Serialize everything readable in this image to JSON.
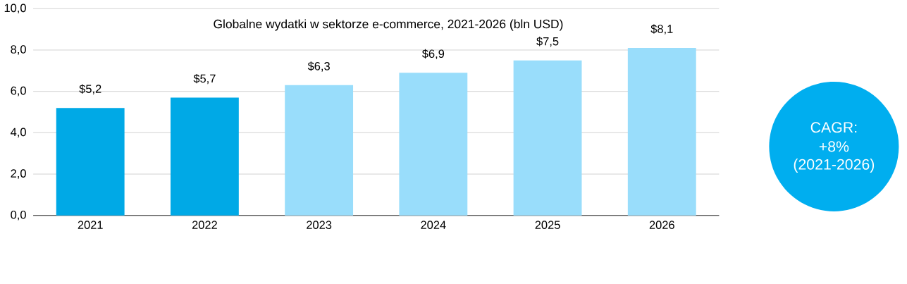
{
  "chart_data": {
    "type": "bar",
    "title": "Globalne wydatki w sektorze e-commerce, 2021-2026 (bln USD)",
    "categories": [
      "2021",
      "2022",
      "2023",
      "2024",
      "2025",
      "2026"
    ],
    "values": [
      5.2,
      5.7,
      6.3,
      6.9,
      7.5,
      8.1
    ],
    "colors": [
      "#00a9e6",
      "#00a9e6",
      "#99ddfb",
      "#99ddfb",
      "#99ddfb",
      "#99ddfb"
    ],
    "value_labels": [
      "$5,2",
      "$5,7",
      "$6,3",
      "$6,9",
      "$7,5",
      "$8,1"
    ],
    "ylim": [
      0,
      10
    ],
    "yticks": [
      {
        "value": 0,
        "label": "0,0"
      },
      {
        "value": 2,
        "label": "2,0"
      },
      {
        "value": 4,
        "label": "4,0"
      },
      {
        "value": 6,
        "label": "6,0"
      },
      {
        "value": 8,
        "label": "8,0"
      },
      {
        "value": 10,
        "label": "10,0"
      }
    ],
    "grid": "y",
    "annotations": [
      "CAGR:",
      "+8%",
      "(2021-2026)"
    ]
  }
}
